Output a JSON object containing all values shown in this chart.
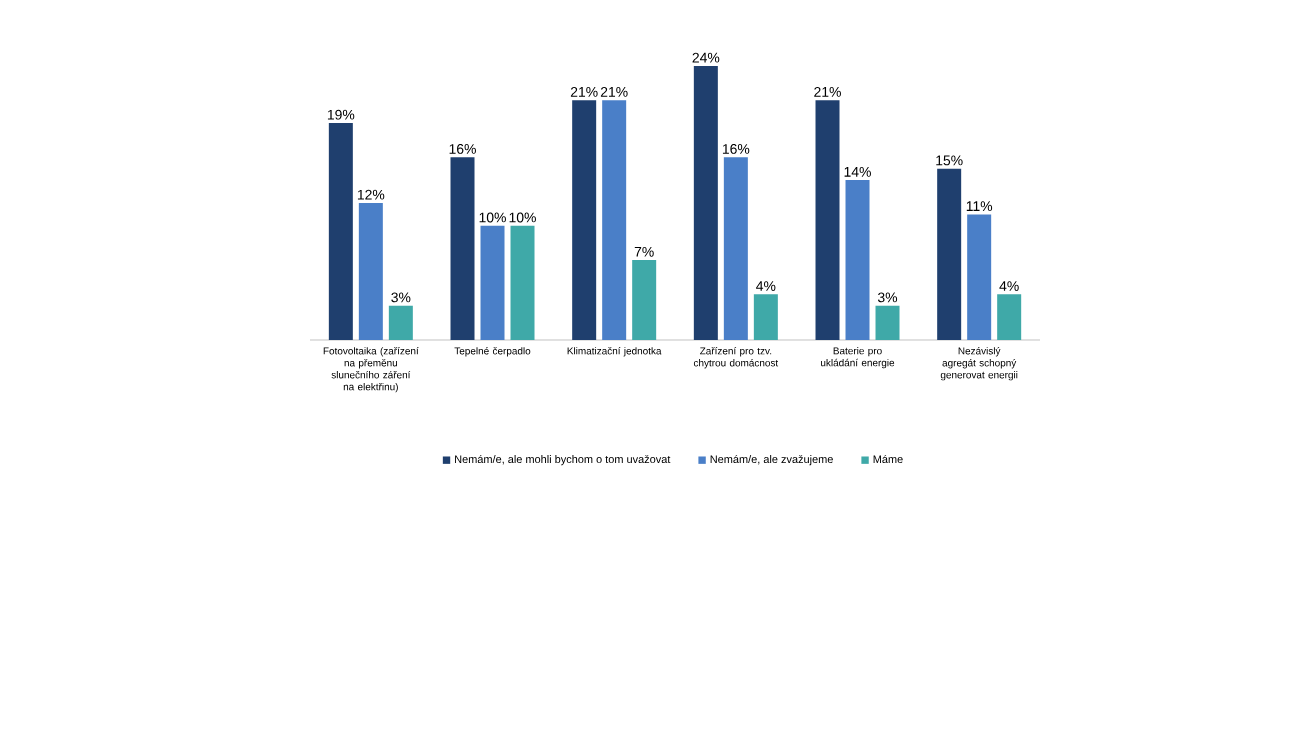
{
  "chart_data": {
    "type": "bar",
    "categories": [
      "Fotovoltaika (zařízení na přeměnu slunečního záření na elektřinu)",
      "Tepelné čerpadlo",
      "Klimatizační jednotka",
      "Zařízení pro tzv. chytrou domácnost",
      "Baterie pro ukládání energie",
      "Nezávislý agregát schopný generovat energii"
    ],
    "series": [
      {
        "name": "Nemám/e, ale mohli bychom o tom uvažovat",
        "color": "#1f3f6e",
        "values": [
          19,
          16,
          21,
          24,
          21,
          15
        ],
        "value_labels": [
          "19%",
          "16%",
          "21%",
          "24%",
          "21%",
          "15%"
        ]
      },
      {
        "name": "Nemám/e, ale zvažujeme",
        "color": "#4a7fc8",
        "values": [
          12,
          10,
          21,
          16,
          14,
          11
        ],
        "value_labels": [
          "12%",
          "10%",
          "21%",
          "16%",
          "14%",
          "11%"
        ]
      },
      {
        "name": "Máme",
        "color": "#3fa9a8",
        "values": [
          3,
          10,
          7,
          4,
          3,
          4
        ],
        "value_labels": [
          "3%",
          "10%",
          "7%",
          "4%",
          "3%",
          "4%"
        ]
      }
    ],
    "legend": "bottom"
  }
}
